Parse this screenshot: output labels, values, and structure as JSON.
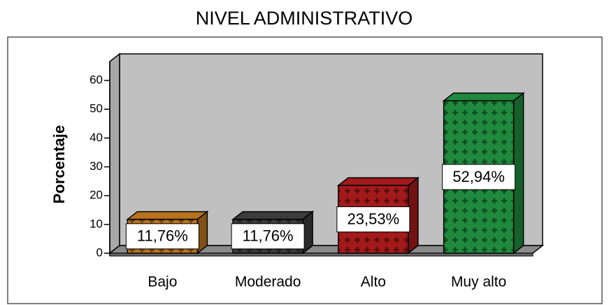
{
  "chart_data": {
    "type": "bar3d",
    "title": "NIVEL ADMINISTRATIVO",
    "y_label": "Porcentaje",
    "categories": [
      "Bajo",
      "Moderado",
      "Alto",
      "Muy alto"
    ],
    "values": [
      11.76,
      11.76,
      23.53,
      52.94
    ],
    "value_labels": [
      "11,76%",
      "11,76%",
      "23,53%",
      "52,94%"
    ],
    "colors": [
      "#b8731e",
      "#3c3c3c",
      "#a31a1a",
      "#1f8a3e"
    ],
    "ylim": [
      0,
      60
    ],
    "yticks": [
      0,
      10,
      20,
      30,
      40,
      50,
      60
    ]
  }
}
